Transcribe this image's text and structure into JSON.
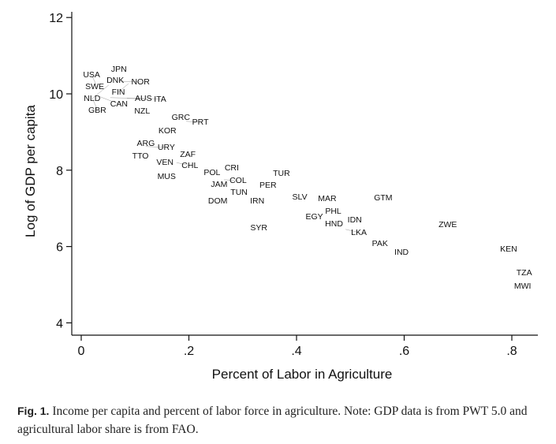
{
  "chart_data": {
    "type": "scatter",
    "title": "",
    "xlabel": "Percent of Labor in Agriculture",
    "ylabel": "Log of GDP per capita",
    "xlim": [
      0,
      0.8
    ],
    "ylim": [
      4,
      12
    ],
    "xticks": [
      {
        "v": 0,
        "label": "0"
      },
      {
        "v": 0.2,
        "label": ".2"
      },
      {
        "v": 0.4,
        "label": ".4"
      },
      {
        "v": 0.6,
        "label": ".6"
      },
      {
        "v": 0.8,
        "label": ".8"
      }
    ],
    "yticks": [
      {
        "v": 4,
        "label": "4"
      },
      {
        "v": 6,
        "label": "6"
      },
      {
        "v": 8,
        "label": "8"
      },
      {
        "v": 10,
        "label": "10"
      },
      {
        "v": 12,
        "label": "12"
      }
    ],
    "grid": false,
    "points": [
      {
        "label": "JPN",
        "x": 0.07,
        "y": 10.66
      },
      {
        "label": "DNK",
        "x": 0.053,
        "y": 10.43
      },
      {
        "label": "SWE",
        "x": 0.044,
        "y": 10.31
      },
      {
        "label": "NOR",
        "x": 0.072,
        "y": 10.33
      },
      {
        "label": "FIN",
        "x": 0.088,
        "y": 10.27
      },
      {
        "label": "USA",
        "x": 0.028,
        "y": 10.23
      },
      {
        "label": "NLD",
        "x": 0.051,
        "y": 10.23
      },
      {
        "label": "CAN",
        "x": 0.032,
        "y": 9.94
      },
      {
        "label": "AUS",
        "x": 0.054,
        "y": 9.9
      },
      {
        "label": "GBR",
        "x": 0.021,
        "y": 9.88
      },
      {
        "label": "ITA",
        "x": 0.085,
        "y": 9.88
      },
      {
        "label": "NZL",
        "x": 0.1,
        "y": 9.71
      },
      {
        "label": "GRC",
        "x": 0.185,
        "y": 9.4
      },
      {
        "label": "PRT",
        "x": 0.195,
        "y": 9.28
      },
      {
        "label": "KOR",
        "x": 0.16,
        "y": 9.05
      },
      {
        "label": "ARG",
        "x": 0.12,
        "y": 8.72
      },
      {
        "label": "URY",
        "x": 0.12,
        "y": 8.62
      },
      {
        "label": "TTO",
        "x": 0.11,
        "y": 8.39
      },
      {
        "label": "ZAF",
        "x": 0.198,
        "y": 8.43
      },
      {
        "label": "VEN",
        "x": 0.141,
        "y": 8.22
      },
      {
        "label": "CHL",
        "x": 0.177,
        "y": 8.2
      },
      {
        "label": "MUS",
        "x": 0.163,
        "y": 8.02
      },
      {
        "label": "POL",
        "x": 0.243,
        "y": 7.95
      },
      {
        "label": "CRI",
        "x": 0.265,
        "y": 8.08
      },
      {
        "label": "JAM",
        "x": 0.243,
        "y": 7.79
      },
      {
        "label": "COL",
        "x": 0.265,
        "y": 7.75
      },
      {
        "label": "TUN",
        "x": 0.28,
        "y": 7.58
      },
      {
        "label": "DOM",
        "x": 0.261,
        "y": 7.29
      },
      {
        "label": "TUR",
        "x": 0.372,
        "y": 7.93
      },
      {
        "label": "PER",
        "x": 0.347,
        "y": 7.62
      },
      {
        "label": "IRN",
        "x": 0.327,
        "y": 7.21
      },
      {
        "label": "SYR",
        "x": 0.33,
        "y": 6.51
      },
      {
        "label": "SLV",
        "x": 0.406,
        "y": 7.31
      },
      {
        "label": "MAR",
        "x": 0.457,
        "y": 7.27
      },
      {
        "label": "PHL",
        "x": 0.455,
        "y": 7.09
      },
      {
        "label": "EGY",
        "x": 0.436,
        "y": 6.88
      },
      {
        "label": "HND",
        "x": 0.455,
        "y": 6.61
      },
      {
        "label": "IDN",
        "x": 0.508,
        "y": 6.71
      },
      {
        "label": "LKA",
        "x": 0.491,
        "y": 6.45
      },
      {
        "label": "GTM",
        "x": 0.561,
        "y": 7.29
      },
      {
        "label": "PAK",
        "x": 0.555,
        "y": 6.1
      },
      {
        "label": "IND",
        "x": 0.595,
        "y": 5.87
      },
      {
        "label": "ZWE",
        "x": 0.681,
        "y": 6.59
      },
      {
        "label": "KEN",
        "x": 0.794,
        "y": 5.95
      },
      {
        "label": "TZA",
        "x": 0.823,
        "y": 5.33
      },
      {
        "label": "MWI",
        "x": 0.82,
        "y": 4.98
      }
    ]
  },
  "caption": {
    "label": "Fig. 1.",
    "text": " Income per capita and percent of labor force in agriculture. Note: GDP data is from PWT 5.0 and agricultural labor share is from FAO."
  }
}
